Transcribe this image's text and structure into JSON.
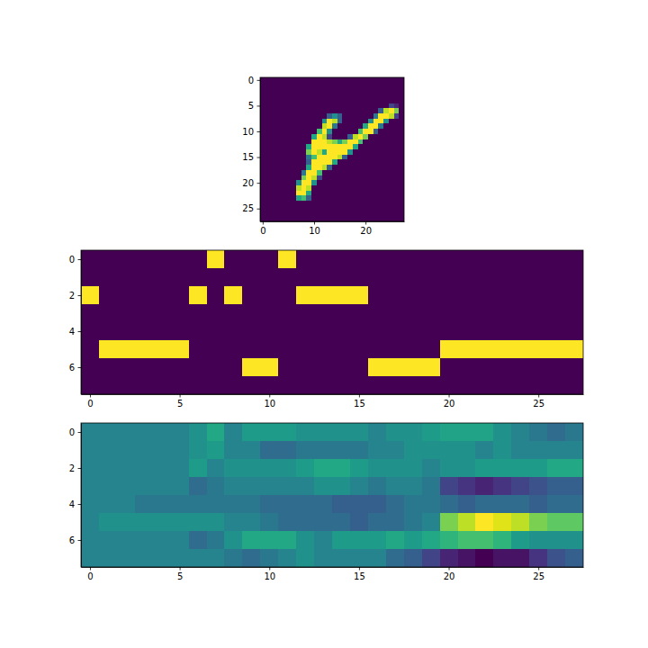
{
  "chart_data": [
    {
      "type": "heatmap",
      "color": "viridis",
      "clim": [
        0,
        1
      ],
      "xlim": [
        -0.5,
        27.5
      ],
      "ylim": [
        27.5,
        -0.5
      ],
      "xticks": [
        0,
        10,
        20
      ],
      "yticks": [
        0,
        5,
        10,
        15,
        20,
        25
      ],
      "z": [
        [
          0,
          0,
          0,
          0,
          0,
          0,
          0,
          0,
          0,
          0,
          0,
          0,
          0,
          0,
          0,
          0,
          0,
          0,
          0,
          0,
          0,
          0,
          0,
          0,
          0,
          0,
          0,
          0
        ],
        [
          0,
          0,
          0,
          0,
          0,
          0,
          0,
          0,
          0,
          0,
          0,
          0,
          0,
          0,
          0,
          0,
          0,
          0,
          0,
          0,
          0,
          0,
          0,
          0,
          0,
          0,
          0,
          0
        ],
        [
          0,
          0,
          0,
          0,
          0,
          0,
          0,
          0,
          0,
          0,
          0,
          0,
          0,
          0,
          0,
          0,
          0,
          0,
          0,
          0,
          0,
          0,
          0,
          0,
          0,
          0,
          0,
          0
        ],
        [
          0,
          0,
          0,
          0,
          0,
          0,
          0,
          0,
          0,
          0,
          0,
          0,
          0,
          0,
          0,
          0,
          0,
          0,
          0,
          0,
          0,
          0,
          0,
          0,
          0,
          0,
          0,
          0
        ],
        [
          0,
          0,
          0,
          0,
          0,
          0,
          0,
          0,
          0,
          0,
          0,
          0,
          0,
          0,
          0,
          0,
          0,
          0,
          0,
          0,
          0,
          0,
          0,
          0,
          0,
          0,
          0,
          0
        ],
        [
          0,
          0,
          0,
          0,
          0,
          0,
          0,
          0,
          0,
          0,
          0,
          0,
          0,
          0,
          0,
          0,
          0,
          0,
          0,
          0,
          0,
          0,
          0,
          0,
          0,
          0.2,
          0.1,
          0
        ],
        [
          0,
          0,
          0,
          0,
          0,
          0,
          0,
          0,
          0,
          0,
          0,
          0,
          0,
          0,
          0,
          0,
          0,
          0,
          0,
          0,
          0,
          0,
          0,
          0.3,
          0.9,
          1,
          0.8,
          0
        ],
        [
          0,
          0,
          0,
          0,
          0,
          0,
          0,
          0,
          0,
          0,
          0,
          0,
          0,
          0.3,
          0.5,
          0.3,
          0,
          0,
          0,
          0,
          0,
          0,
          0.4,
          1,
          1,
          0.9,
          0.2,
          0
        ],
        [
          0,
          0,
          0,
          0,
          0,
          0,
          0,
          0,
          0,
          0,
          0,
          0,
          0.5,
          1,
          0.9,
          0.3,
          0,
          0,
          0,
          0,
          0,
          0.5,
          1,
          1,
          0.5,
          0,
          0,
          0
        ],
        [
          0,
          0,
          0,
          0,
          0,
          0,
          0,
          0,
          0,
          0,
          0,
          0,
          0.9,
          1,
          0.4,
          0,
          0,
          0,
          0,
          0,
          0.6,
          1,
          1,
          0.4,
          0,
          0,
          0,
          0
        ],
        [
          0,
          0,
          0,
          0,
          0,
          0,
          0,
          0,
          0,
          0,
          0,
          0.7,
          1,
          0.5,
          0,
          0,
          0,
          0,
          0,
          0.7,
          1,
          1,
          0.3,
          0,
          0,
          0,
          0,
          0
        ],
        [
          0,
          0,
          0,
          0,
          0,
          0,
          0,
          0,
          0,
          0,
          0.6,
          1,
          0.9,
          0.2,
          0,
          0,
          0,
          0.3,
          0.9,
          1,
          0.8,
          0,
          0,
          0,
          0,
          0,
          0,
          0
        ],
        [
          0,
          0,
          0,
          0,
          0,
          0,
          0,
          0,
          0,
          0,
          1,
          1,
          1,
          0.9,
          0.8,
          0.6,
          0.8,
          1,
          1,
          0.7,
          0,
          0,
          0,
          0,
          0,
          0,
          0,
          0
        ],
        [
          0,
          0,
          0,
          0,
          0,
          0,
          0,
          0,
          0,
          0.6,
          1,
          1,
          1,
          1,
          1,
          1,
          1,
          1,
          0.6,
          0,
          0,
          0,
          0,
          0,
          0,
          0,
          0,
          0
        ],
        [
          0,
          0,
          0,
          0,
          0,
          0,
          0,
          0,
          0,
          0.8,
          1,
          0.9,
          0.6,
          1,
          1,
          1,
          1,
          0.5,
          0,
          0,
          0,
          0,
          0,
          0,
          0,
          0,
          0,
          0
        ],
        [
          0,
          0,
          0,
          0,
          0,
          0,
          0,
          0,
          0,
          0.4,
          0.7,
          1,
          1,
          1,
          1,
          0.9,
          0.3,
          0,
          0,
          0,
          0,
          0,
          0,
          0,
          0,
          0,
          0,
          0
        ],
        [
          0,
          0,
          0,
          0,
          0,
          0,
          0,
          0,
          0,
          0.3,
          1,
          1,
          1,
          1,
          0.6,
          0,
          0,
          0,
          0,
          0,
          0,
          0,
          0,
          0,
          0,
          0,
          0,
          0
        ],
        [
          0,
          0,
          0,
          0,
          0,
          0,
          0,
          0,
          0,
          0.6,
          1,
          1,
          0.9,
          0.3,
          0,
          0,
          0,
          0,
          0,
          0,
          0,
          0,
          0,
          0,
          0,
          0,
          0,
          0
        ],
        [
          0,
          0,
          0,
          0,
          0,
          0,
          0,
          0,
          0.4,
          1,
          1,
          0.7,
          0,
          0,
          0,
          0,
          0,
          0,
          0,
          0,
          0,
          0,
          0,
          0,
          0,
          0,
          0,
          0
        ],
        [
          0,
          0,
          0,
          0,
          0,
          0,
          0,
          0,
          0.8,
          1,
          0.9,
          0.2,
          0,
          0,
          0,
          0,
          0,
          0,
          0,
          0,
          0,
          0,
          0,
          0,
          0,
          0,
          0,
          0
        ],
        [
          0,
          0,
          0,
          0,
          0,
          0,
          0,
          0.5,
          1,
          1,
          0.5,
          0,
          0,
          0,
          0,
          0,
          0,
          0,
          0,
          0,
          0,
          0,
          0,
          0,
          0,
          0,
          0,
          0
        ],
        [
          0,
          0,
          0,
          0,
          0,
          0,
          0,
          0.9,
          1,
          0.9,
          0,
          0,
          0,
          0,
          0,
          0,
          0,
          0,
          0,
          0,
          0,
          0,
          0,
          0,
          0,
          0,
          0,
          0
        ],
        [
          0,
          0,
          0,
          0,
          0,
          0,
          0,
          1,
          1,
          0.6,
          0,
          0,
          0,
          0,
          0,
          0,
          0,
          0,
          0,
          0,
          0,
          0,
          0,
          0,
          0,
          0,
          0,
          0
        ],
        [
          0,
          0,
          0,
          0,
          0,
          0,
          0,
          0.6,
          0.7,
          0.3,
          0,
          0,
          0,
          0,
          0,
          0,
          0,
          0,
          0,
          0,
          0,
          0,
          0,
          0,
          0,
          0,
          0,
          0
        ],
        [
          0,
          0,
          0,
          0,
          0,
          0,
          0,
          0,
          0,
          0,
          0,
          0,
          0,
          0,
          0,
          0,
          0,
          0,
          0,
          0,
          0,
          0,
          0,
          0,
          0,
          0,
          0,
          0
        ],
        [
          0,
          0,
          0,
          0,
          0,
          0,
          0,
          0,
          0,
          0,
          0,
          0,
          0,
          0,
          0,
          0,
          0,
          0,
          0,
          0,
          0,
          0,
          0,
          0,
          0,
          0,
          0,
          0
        ],
        [
          0,
          0,
          0,
          0,
          0,
          0,
          0,
          0,
          0,
          0,
          0,
          0,
          0,
          0,
          0,
          0,
          0,
          0,
          0,
          0,
          0,
          0,
          0,
          0,
          0,
          0,
          0,
          0
        ],
        [
          0,
          0,
          0,
          0,
          0,
          0,
          0,
          0,
          0,
          0,
          0,
          0,
          0,
          0,
          0,
          0,
          0,
          0,
          0,
          0,
          0,
          0,
          0,
          0,
          0,
          0,
          0,
          0
        ]
      ]
    },
    {
      "type": "heatmap",
      "color": "viridis",
      "clim": [
        0,
        1
      ],
      "xlim": [
        -0.5,
        27.5
      ],
      "ylim": [
        7.5,
        -0.5
      ],
      "xticks": [
        0,
        5,
        10,
        15,
        20,
        25
      ],
      "yticks": [
        0,
        2,
        4,
        6
      ],
      "z": [
        [
          0,
          0,
          0,
          0,
          0,
          0,
          0,
          1,
          0,
          0,
          0,
          1,
          0,
          0,
          0,
          0,
          0,
          0,
          0,
          0,
          0,
          0,
          0,
          0,
          0,
          0,
          0,
          0
        ],
        [
          0,
          0,
          0,
          0,
          0,
          0,
          0,
          0,
          0,
          0,
          0,
          0,
          0,
          0,
          0,
          0,
          0,
          0,
          0,
          0,
          0,
          0,
          0,
          0,
          0,
          0,
          0,
          0
        ],
        [
          1,
          0,
          0,
          0,
          0,
          0,
          1,
          0,
          1,
          0,
          0,
          0,
          1,
          1,
          1,
          1,
          0,
          0,
          0,
          0,
          0,
          0,
          0,
          0,
          0,
          0,
          0,
          0
        ],
        [
          0,
          0,
          0,
          0,
          0,
          0,
          0,
          0,
          0,
          0,
          0,
          0,
          0,
          0,
          0,
          0,
          0,
          0,
          0,
          0,
          0,
          0,
          0,
          0,
          0,
          0,
          0,
          0
        ],
        [
          0,
          0,
          0,
          0,
          0,
          0,
          0,
          0,
          0,
          0,
          0,
          0,
          0,
          0,
          0,
          0,
          0,
          0,
          0,
          0,
          0,
          0,
          0,
          0,
          0,
          0,
          0,
          0
        ],
        [
          0,
          1,
          1,
          1,
          1,
          1,
          0,
          0,
          0,
          0,
          0,
          0,
          0,
          0,
          0,
          0,
          0,
          0,
          0,
          0,
          1,
          1,
          1,
          1,
          1,
          1,
          1,
          1
        ],
        [
          0,
          0,
          0,
          0,
          0,
          0,
          0,
          0,
          0,
          1,
          1,
          0,
          0,
          0,
          0,
          0,
          1,
          1,
          1,
          1,
          0,
          0,
          0,
          0,
          0,
          0,
          0,
          0
        ],
        [
          0,
          0,
          0,
          0,
          0,
          0,
          0,
          0,
          0,
          0,
          0,
          0,
          0,
          0,
          0,
          0,
          0,
          0,
          0,
          0,
          0,
          0,
          0,
          0,
          0,
          0,
          0,
          0
        ]
      ]
    },
    {
      "type": "heatmap",
      "color": "viridis",
      "clim": [
        0,
        1
      ],
      "xlim": [
        -0.5,
        27.5
      ],
      "ylim": [
        7.5,
        -0.5
      ],
      "xticks": [
        0,
        5,
        10,
        15,
        20,
        25
      ],
      "yticks": [
        0,
        2,
        4,
        6
      ],
      "z": [
        [
          0.45,
          0.45,
          0.45,
          0.45,
          0.45,
          0.45,
          0.5,
          0.6,
          0.45,
          0.55,
          0.55,
          0.55,
          0.5,
          0.5,
          0.5,
          0.5,
          0.45,
          0.5,
          0.5,
          0.55,
          0.58,
          0.58,
          0.58,
          0.5,
          0.45,
          0.4,
          0.35,
          0.4
        ],
        [
          0.45,
          0.45,
          0.45,
          0.45,
          0.45,
          0.45,
          0.5,
          0.55,
          0.45,
          0.45,
          0.35,
          0.35,
          0.4,
          0.4,
          0.4,
          0.4,
          0.45,
          0.45,
          0.5,
          0.5,
          0.5,
          0.5,
          0.45,
          0.5,
          0.45,
          0.45,
          0.45,
          0.45
        ],
        [
          0.45,
          0.45,
          0.45,
          0.45,
          0.45,
          0.45,
          0.55,
          0.45,
          0.5,
          0.5,
          0.5,
          0.5,
          0.55,
          0.6,
          0.6,
          0.55,
          0.5,
          0.5,
          0.5,
          0.45,
          0.5,
          0.5,
          0.55,
          0.55,
          0.55,
          0.55,
          0.6,
          0.6
        ],
        [
          0.45,
          0.45,
          0.45,
          0.45,
          0.45,
          0.45,
          0.35,
          0.4,
          0.45,
          0.45,
          0.45,
          0.45,
          0.45,
          0.5,
          0.5,
          0.45,
          0.4,
          0.45,
          0.45,
          0.4,
          0.2,
          0.15,
          0.1,
          0.15,
          0.2,
          0.25,
          0.3,
          0.3
        ],
        [
          0.45,
          0.45,
          0.45,
          0.4,
          0.4,
          0.4,
          0.4,
          0.4,
          0.4,
          0.4,
          0.35,
          0.35,
          0.35,
          0.35,
          0.3,
          0.3,
          0.3,
          0.35,
          0.4,
          0.4,
          0.35,
          0.3,
          0.35,
          0.35,
          0.35,
          0.3,
          0.35,
          0.35
        ],
        [
          0.45,
          0.5,
          0.5,
          0.5,
          0.5,
          0.5,
          0.5,
          0.5,
          0.45,
          0.45,
          0.4,
          0.35,
          0.35,
          0.35,
          0.35,
          0.3,
          0.35,
          0.35,
          0.4,
          0.45,
          0.8,
          0.9,
          1,
          0.95,
          0.9,
          0.8,
          0.75,
          0.75
        ],
        [
          0.45,
          0.45,
          0.45,
          0.45,
          0.45,
          0.45,
          0.35,
          0.4,
          0.5,
          0.6,
          0.6,
          0.6,
          0.5,
          0.45,
          0.55,
          0.55,
          0.55,
          0.6,
          0.55,
          0.6,
          0.65,
          0.7,
          0.7,
          0.65,
          0.55,
          0.5,
          0.5,
          0.5
        ],
        [
          0.45,
          0.45,
          0.45,
          0.45,
          0.45,
          0.45,
          0.45,
          0.45,
          0.4,
          0.35,
          0.4,
          0.45,
          0.5,
          0.45,
          0.45,
          0.45,
          0.45,
          0.35,
          0.3,
          0.2,
          0.1,
          0.05,
          0,
          0.05,
          0.05,
          0.15,
          0.25,
          0.3
        ]
      ]
    }
  ]
}
